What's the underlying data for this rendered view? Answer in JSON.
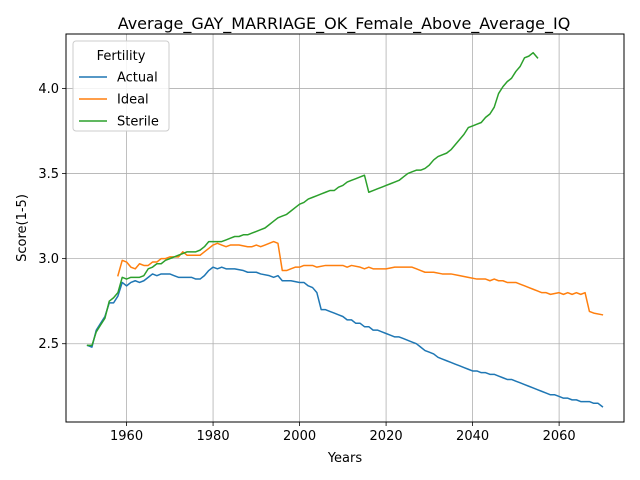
{
  "chart_data": {
    "type": "line",
    "title": "Average_GAY_MARRIAGE_OK_Female_Above_Average_IQ",
    "xlabel": "Years",
    "ylabel": "Score(1-5)",
    "xlim": [
      1946,
      2075
    ],
    "ylim": [
      2.04,
      4.32
    ],
    "xticks": [
      1960,
      1980,
      2000,
      2020,
      2040,
      2060
    ],
    "yticks": [
      2.5,
      3.0,
      3.5,
      4.0
    ],
    "grid": true,
    "legend": {
      "title": "Fertility",
      "position": "top-left"
    },
    "series": [
      {
        "name": "Actual",
        "color": "#1f77b4",
        "points": [
          [
            1951,
            2.49
          ],
          [
            1952,
            2.48
          ],
          [
            1953,
            2.58
          ],
          [
            1954,
            2.62
          ],
          [
            1955,
            2.66
          ],
          [
            1956,
            2.74
          ],
          [
            1957,
            2.74
          ],
          [
            1958,
            2.78
          ],
          [
            1959,
            2.86
          ],
          [
            1960,
            2.84
          ],
          [
            1961,
            2.86
          ],
          [
            1962,
            2.87
          ],
          [
            1963,
            2.86
          ],
          [
            1964,
            2.87
          ],
          [
            1965,
            2.89
          ],
          [
            1966,
            2.91
          ],
          [
            1967,
            2.9
          ],
          [
            1968,
            2.91
          ],
          [
            1969,
            2.91
          ],
          [
            1970,
            2.91
          ],
          [
            1971,
            2.9
          ],
          [
            1972,
            2.89
          ],
          [
            1973,
            2.89
          ],
          [
            1974,
            2.89
          ],
          [
            1975,
            2.89
          ],
          [
            1976,
            2.88
          ],
          [
            1977,
            2.88
          ],
          [
            1978,
            2.9
          ],
          [
            1979,
            2.93
          ],
          [
            1980,
            2.95
          ],
          [
            1981,
            2.94
          ],
          [
            1982,
            2.95
          ],
          [
            1983,
            2.94
          ],
          [
            1985,
            2.94
          ],
          [
            1987,
            2.93
          ],
          [
            1988,
            2.92
          ],
          [
            1990,
            2.92
          ],
          [
            1991,
            2.91
          ],
          [
            1993,
            2.9
          ],
          [
            1994,
            2.89
          ],
          [
            1995,
            2.9
          ],
          [
            1996,
            2.87
          ],
          [
            1998,
            2.87
          ],
          [
            2000,
            2.86
          ],
          [
            2001,
            2.86
          ],
          [
            2002,
            2.84
          ],
          [
            2003,
            2.83
          ],
          [
            2004,
            2.8
          ],
          [
            2005,
            2.7
          ],
          [
            2006,
            2.7
          ],
          [
            2007,
            2.69
          ],
          [
            2008,
            2.68
          ],
          [
            2009,
            2.67
          ],
          [
            2010,
            2.66
          ],
          [
            2011,
            2.64
          ],
          [
            2012,
            2.64
          ],
          [
            2013,
            2.62
          ],
          [
            2014,
            2.62
          ],
          [
            2015,
            2.6
          ],
          [
            2016,
            2.6
          ],
          [
            2017,
            2.58
          ],
          [
            2018,
            2.58
          ],
          [
            2019,
            2.57
          ],
          [
            2020,
            2.56
          ],
          [
            2021,
            2.55
          ],
          [
            2022,
            2.54
          ],
          [
            2023,
            2.54
          ],
          [
            2024,
            2.53
          ],
          [
            2025,
            2.52
          ],
          [
            2026,
            2.51
          ],
          [
            2027,
            2.5
          ],
          [
            2028,
            2.48
          ],
          [
            2029,
            2.46
          ],
          [
            2030,
            2.45
          ],
          [
            2031,
            2.44
          ],
          [
            2032,
            2.42
          ],
          [
            2033,
            2.41
          ],
          [
            2034,
            2.4
          ],
          [
            2035,
            2.39
          ],
          [
            2036,
            2.38
          ],
          [
            2037,
            2.37
          ],
          [
            2038,
            2.36
          ],
          [
            2039,
            2.35
          ],
          [
            2040,
            2.34
          ],
          [
            2041,
            2.34
          ],
          [
            2042,
            2.33
          ],
          [
            2043,
            2.33
          ],
          [
            2044,
            2.32
          ],
          [
            2045,
            2.32
          ],
          [
            2046,
            2.31
          ],
          [
            2047,
            2.3
          ],
          [
            2048,
            2.29
          ],
          [
            2049,
            2.29
          ],
          [
            2050,
            2.28
          ],
          [
            2051,
            2.27
          ],
          [
            2052,
            2.26
          ],
          [
            2053,
            2.25
          ],
          [
            2054,
            2.24
          ],
          [
            2055,
            2.23
          ],
          [
            2056,
            2.22
          ],
          [
            2057,
            2.21
          ],
          [
            2058,
            2.2
          ],
          [
            2059,
            2.2
          ],
          [
            2060,
            2.19
          ],
          [
            2061,
            2.18
          ],
          [
            2062,
            2.18
          ],
          [
            2063,
            2.17
          ],
          [
            2064,
            2.17
          ],
          [
            2065,
            2.16
          ],
          [
            2066,
            2.16
          ],
          [
            2067,
            2.16
          ],
          [
            2068,
            2.15
          ],
          [
            2069,
            2.15
          ],
          [
            2070,
            2.13
          ]
        ]
      },
      {
        "name": "Ideal",
        "color": "#ff7f0e",
        "points": [
          [
            1958,
            2.9
          ],
          [
            1959,
            2.99
          ],
          [
            1960,
            2.98
          ],
          [
            1961,
            2.95
          ],
          [
            1962,
            2.94
          ],
          [
            1963,
            2.97
          ],
          [
            1964,
            2.96
          ],
          [
            1965,
            2.96
          ],
          [
            1966,
            2.98
          ],
          [
            1967,
            2.98
          ],
          [
            1968,
            3.0
          ],
          [
            1969,
            3.0
          ],
          [
            1970,
            3.01
          ],
          [
            1971,
            3.01
          ],
          [
            1972,
            3.01
          ],
          [
            1973,
            3.04
          ],
          [
            1974,
            3.02
          ],
          [
            1975,
            3.02
          ],
          [
            1976,
            3.02
          ],
          [
            1977,
            3.02
          ],
          [
            1978,
            3.04
          ],
          [
            1979,
            3.06
          ],
          [
            1980,
            3.08
          ],
          [
            1981,
            3.09
          ],
          [
            1982,
            3.08
          ],
          [
            1983,
            3.07
          ],
          [
            1984,
            3.08
          ],
          [
            1986,
            3.08
          ],
          [
            1988,
            3.07
          ],
          [
            1989,
            3.07
          ],
          [
            1990,
            3.08
          ],
          [
            1991,
            3.07
          ],
          [
            1992,
            3.08
          ],
          [
            1993,
            3.09
          ],
          [
            1994,
            3.1
          ],
          [
            1995,
            3.09
          ],
          [
            1996,
            2.93
          ],
          [
            1997,
            2.93
          ],
          [
            1998,
            2.94
          ],
          [
            1999,
            2.95
          ],
          [
            2000,
            2.95
          ],
          [
            2001,
            2.96
          ],
          [
            2003,
            2.96
          ],
          [
            2004,
            2.95
          ],
          [
            2006,
            2.96
          ],
          [
            2008,
            2.96
          ],
          [
            2010,
            2.96
          ],
          [
            2011,
            2.95
          ],
          [
            2012,
            2.96
          ],
          [
            2014,
            2.95
          ],
          [
            2015,
            2.94
          ],
          [
            2016,
            2.95
          ],
          [
            2017,
            2.94
          ],
          [
            2018,
            2.94
          ],
          [
            2020,
            2.94
          ],
          [
            2022,
            2.95
          ],
          [
            2024,
            2.95
          ],
          [
            2026,
            2.95
          ],
          [
            2027,
            2.94
          ],
          [
            2028,
            2.93
          ],
          [
            2029,
            2.92
          ],
          [
            2031,
            2.92
          ],
          [
            2033,
            2.91
          ],
          [
            2035,
            2.91
          ],
          [
            2037,
            2.9
          ],
          [
            2039,
            2.89
          ],
          [
            2041,
            2.88
          ],
          [
            2043,
            2.88
          ],
          [
            2044,
            2.87
          ],
          [
            2045,
            2.88
          ],
          [
            2046,
            2.87
          ],
          [
            2047,
            2.87
          ],
          [
            2048,
            2.86
          ],
          [
            2050,
            2.86
          ],
          [
            2051,
            2.85
          ],
          [
            2052,
            2.84
          ],
          [
            2053,
            2.83
          ],
          [
            2054,
            2.82
          ],
          [
            2055,
            2.81
          ],
          [
            2056,
            2.8
          ],
          [
            2057,
            2.8
          ],
          [
            2058,
            2.79
          ],
          [
            2060,
            2.8
          ],
          [
            2061,
            2.79
          ],
          [
            2062,
            2.8
          ],
          [
            2063,
            2.79
          ],
          [
            2064,
            2.8
          ],
          [
            2065,
            2.79
          ],
          [
            2066,
            2.8
          ],
          [
            2067,
            2.69
          ],
          [
            2068,
            2.68
          ],
          [
            2070,
            2.67
          ]
        ]
      },
      {
        "name": "Sterile",
        "color": "#2ca02c",
        "points": [
          [
            1951,
            2.49
          ],
          [
            1952,
            2.49
          ],
          [
            1953,
            2.57
          ],
          [
            1954,
            2.61
          ],
          [
            1955,
            2.65
          ],
          [
            1956,
            2.75
          ],
          [
            1957,
            2.77
          ],
          [
            1958,
            2.8
          ],
          [
            1959,
            2.89
          ],
          [
            1960,
            2.88
          ],
          [
            1961,
            2.89
          ],
          [
            1962,
            2.89
          ],
          [
            1963,
            2.89
          ],
          [
            1964,
            2.9
          ],
          [
            1965,
            2.94
          ],
          [
            1966,
            2.95
          ],
          [
            1967,
            2.97
          ],
          [
            1968,
            2.97
          ],
          [
            1969,
            2.99
          ],
          [
            1970,
            3.0
          ],
          [
            1971,
            3.01
          ],
          [
            1972,
            3.02
          ],
          [
            1973,
            3.03
          ],
          [
            1974,
            3.04
          ],
          [
            1975,
            3.04
          ],
          [
            1976,
            3.04
          ],
          [
            1977,
            3.05
          ],
          [
            1978,
            3.07
          ],
          [
            1979,
            3.1
          ],
          [
            1980,
            3.1
          ],
          [
            1981,
            3.1
          ],
          [
            1982,
            3.1
          ],
          [
            1983,
            3.11
          ],
          [
            1984,
            3.12
          ],
          [
            1985,
            3.13
          ],
          [
            1986,
            3.13
          ],
          [
            1987,
            3.14
          ],
          [
            1988,
            3.14
          ],
          [
            1989,
            3.15
          ],
          [
            1990,
            3.16
          ],
          [
            1991,
            3.17
          ],
          [
            1992,
            3.18
          ],
          [
            1993,
            3.2
          ],
          [
            1994,
            3.22
          ],
          [
            1995,
            3.24
          ],
          [
            1996,
            3.25
          ],
          [
            1997,
            3.26
          ],
          [
            1998,
            3.28
          ],
          [
            1999,
            3.3
          ],
          [
            2000,
            3.32
          ],
          [
            2001,
            3.33
          ],
          [
            2002,
            3.35
          ],
          [
            2003,
            3.36
          ],
          [
            2004,
            3.37
          ],
          [
            2005,
            3.38
          ],
          [
            2006,
            3.39
          ],
          [
            2007,
            3.4
          ],
          [
            2008,
            3.4
          ],
          [
            2009,
            3.42
          ],
          [
            2010,
            3.43
          ],
          [
            2011,
            3.45
          ],
          [
            2012,
            3.46
          ],
          [
            2013,
            3.47
          ],
          [
            2014,
            3.48
          ],
          [
            2015,
            3.49
          ],
          [
            2016,
            3.39
          ],
          [
            2017,
            3.4
          ],
          [
            2018,
            3.41
          ],
          [
            2019,
            3.42
          ],
          [
            2020,
            3.43
          ],
          [
            2021,
            3.44
          ],
          [
            2022,
            3.45
          ],
          [
            2023,
            3.46
          ],
          [
            2024,
            3.48
          ],
          [
            2025,
            3.5
          ],
          [
            2026,
            3.51
          ],
          [
            2027,
            3.52
          ],
          [
            2028,
            3.52
          ],
          [
            2029,
            3.53
          ],
          [
            2030,
            3.55
          ],
          [
            2031,
            3.58
          ],
          [
            2032,
            3.6
          ],
          [
            2033,
            3.61
          ],
          [
            2034,
            3.62
          ],
          [
            2035,
            3.64
          ],
          [
            2036,
            3.67
          ],
          [
            2037,
            3.7
          ],
          [
            2038,
            3.73
          ],
          [
            2039,
            3.77
          ],
          [
            2040,
            3.78
          ],
          [
            2041,
            3.79
          ],
          [
            2042,
            3.8
          ],
          [
            2043,
            3.83
          ],
          [
            2044,
            3.85
          ],
          [
            2045,
            3.89
          ],
          [
            2046,
            3.97
          ],
          [
            2047,
            4.01
          ],
          [
            2048,
            4.04
          ],
          [
            2049,
            4.06
          ],
          [
            2050,
            4.1
          ],
          [
            2051,
            4.13
          ],
          [
            2052,
            4.18
          ],
          [
            2053,
            4.19
          ],
          [
            2054,
            4.21
          ],
          [
            2055,
            4.18
          ]
        ]
      }
    ]
  }
}
